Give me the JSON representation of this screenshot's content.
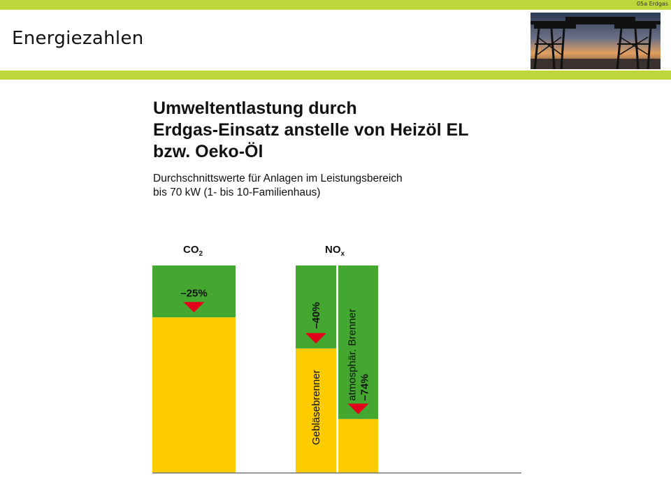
{
  "slide": {
    "section_label": "05a Erdgas",
    "title": "Energiezahlen"
  },
  "colors": {
    "accent_green_bar": "#bfd63a",
    "reduction_green": "#44a830",
    "remaining_yellow": "#fccc00",
    "arrow_red": "#e3001b"
  },
  "chart_data": {
    "type": "bar",
    "title_lines": [
      "Umweltentlastung durch",
      "Erdgas-Einsatz anstelle von Heizöl EL",
      "bzw. Oeko-Öl"
    ],
    "subtitle_lines": [
      "Durchschnittswerte für Anlagen im Leistungsbereich",
      "bis 70 kW (1- bis 10-Familienhaus)"
    ],
    "groups": [
      {
        "label_main": "CO",
        "label_sub": "2",
        "bars": [
          {
            "reduction_pct": 25,
            "reduction_label": "–25%",
            "burner_label": ""
          }
        ]
      },
      {
        "label_main": "NO",
        "label_sub": "x",
        "bars": [
          {
            "reduction_pct": 40,
            "reduction_label": "–40%",
            "burner_label": "Gebläsebrenner"
          },
          {
            "reduction_pct": 74,
            "reduction_label": "–74%",
            "burner_label": "atmosphär. Brenner"
          }
        ]
      }
    ],
    "baseline_pct": 100
  }
}
